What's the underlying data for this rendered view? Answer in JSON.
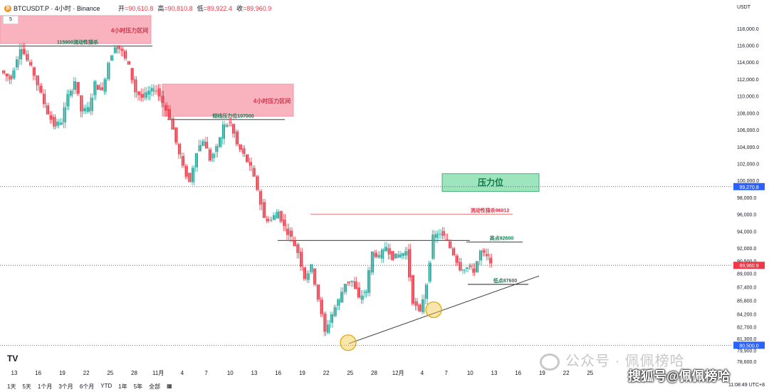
{
  "header": {
    "symbol": "BTCUSDT.P · 4小时 · Binance",
    "symbol_icon": "₿",
    "ohlc": [
      {
        "label": "开",
        "value": "=90,610.8"
      },
      {
        "label": "高",
        "value": "=90,810.8"
      },
      {
        "label": "低",
        "value": "=89,922.4"
      },
      {
        "label": "收",
        "value": "=89,960.9"
      }
    ],
    "currency": "USDT",
    "interval_badge": "5"
  },
  "colors": {
    "up": "#26a69a",
    "down": "#f23645",
    "resist_zone": "#f7a6b4",
    "green_zone": "#8ee0b4",
    "support_circle": "#f5c542",
    "price_tag": "#f23645",
    "level_tag": "#2962ff"
  },
  "chart_data": {
    "type": "candlestick",
    "x_ticks": [
      "13",
      "16",
      "19",
      "22",
      "25",
      "28",
      "11月",
      "4",
      "7",
      "10",
      "13",
      "16",
      "19",
      "22",
      "25",
      "28",
      "12月",
      "4",
      "7",
      "10",
      "13",
      "16",
      "19",
      "22",
      "25"
    ],
    "y_ticks": [
      "118,000.0",
      "116,000.0",
      "114,000.0",
      "112,000.0",
      "110,000.0",
      "108,000.0",
      "106,000.0",
      "104,000.0",
      "102,000.0",
      "100,000.0",
      "98,000.0",
      "96,000.0",
      "94,000.0",
      "92,000.0",
      "90,500.0",
      "89,000.0",
      "87,400.0",
      "85,800.0",
      "84,200.0",
      "82,700.0",
      "81,300.0",
      "79,900.0",
      "78,600.0"
    ],
    "ylim": [
      78000,
      119500
    ],
    "price_path": [
      [
        0,
        113000
      ],
      [
        3,
        112000
      ],
      [
        6,
        115800
      ],
      [
        8,
        114200
      ],
      [
        10,
        112500
      ],
      [
        12,
        110200
      ],
      [
        14,
        108000
      ],
      [
        16,
        106500
      ],
      [
        18,
        107000
      ],
      [
        20,
        110000
      ],
      [
        22,
        111800
      ],
      [
        24,
        108200
      ],
      [
        26,
        108500
      ],
      [
        28,
        111500
      ],
      [
        30,
        110500
      ],
      [
        32,
        114000
      ],
      [
        34,
        116000
      ],
      [
        36,
        115200
      ],
      [
        38,
        113500
      ],
      [
        40,
        110500
      ],
      [
        42,
        109800
      ],
      [
        44,
        110500
      ],
      [
        46,
        110800
      ],
      [
        48,
        109200
      ],
      [
        50,
        107500
      ],
      [
        52,
        104500
      ],
      [
        54,
        101500
      ],
      [
        56,
        99800
      ],
      [
        58,
        103500
      ],
      [
        60,
        104800
      ],
      [
        62,
        102500
      ],
      [
        64,
        103800
      ],
      [
        66,
        106500
      ],
      [
        68,
        106800
      ],
      [
        70,
        104200
      ],
      [
        72,
        103000
      ],
      [
        74,
        101500
      ],
      [
        76,
        99000
      ],
      [
        78,
        95500
      ],
      [
        80,
        95300
      ],
      [
        82,
        96300
      ],
      [
        84,
        94500
      ],
      [
        86,
        93200
      ],
      [
        88,
        91500
      ],
      [
        90,
        88500
      ],
      [
        92,
        89800
      ],
      [
        94,
        86000
      ],
      [
        96,
        82000
      ],
      [
        98,
        84200
      ],
      [
        100,
        85800
      ],
      [
        102,
        87900
      ],
      [
        104,
        88100
      ],
      [
        106,
        86000
      ],
      [
        108,
        86900
      ],
      [
        110,
        91500
      ],
      [
        112,
        90900
      ],
      [
        114,
        92200
      ],
      [
        116,
        90900
      ],
      [
        118,
        91200
      ],
      [
        120,
        91600
      ],
      [
        122,
        85700
      ],
      [
        124,
        84300
      ],
      [
        126,
        87800
      ],
      [
        128,
        93300
      ],
      [
        130,
        93800
      ],
      [
        132,
        92800
      ],
      [
        134,
        91300
      ],
      [
        136,
        89600
      ],
      [
        138,
        89700
      ],
      [
        140,
        89300
      ],
      [
        142,
        91600
      ],
      [
        144,
        90900
      ],
      [
        145,
        89961
      ]
    ],
    "zones": [
      {
        "label": "4小时压力区间",
        "from": 116200,
        "to": 119500,
        "x0": 0,
        "x1": 212
      },
      {
        "label": "4小时压力区间",
        "from": 107600,
        "to": 111400,
        "x0": 228,
        "x1": 412
      },
      {
        "label": "压力位",
        "from": 98700,
        "to": 100800,
        "x0": 621,
        "x1": 757
      }
    ],
    "levels": [
      {
        "label": "115900流动性猎杀",
        "value": 115900,
        "x0": 0,
        "x1": 214
      },
      {
        "label": "短线压力位107000",
        "value": 107200,
        "x0": 235,
        "x1": 400
      },
      {
        "label": "流动性猎杀96012",
        "value": 96012,
        "x0": 436,
        "x1": 720
      },
      {
        "label": "",
        "value": 92900,
        "x0": 390,
        "x1": 660
      },
      {
        "label": "高点92600",
        "value": 92700,
        "x0": 655,
        "x1": 734
      },
      {
        "label": "低点87600",
        "value": 87700,
        "x0": 657,
        "x1": 742
      }
    ],
    "dotted_levels": [
      {
        "value": 99270,
        "tag": "99,270.8"
      },
      {
        "value": 89960,
        "tag": "89,960.9"
      },
      {
        "value": 80500,
        "tag": "80,500.0"
      }
    ],
    "trendline": {
      "from": [
        490,
        80700
      ],
      "to": [
        757,
        88700
      ]
    },
    "support_circles": [
      [
        489,
        80800
      ],
      [
        609,
        84700
      ]
    ]
  },
  "bottom_bar": {
    "ranges": [
      "1天",
      "5天",
      "1个月",
      "3个月",
      "6个月",
      "YTD",
      "1年",
      "5年",
      "全部"
    ],
    "clock": "11:08:49 UTC+8"
  },
  "logo": "TV",
  "watermark": "公众号 · 佩佩榜哈",
  "watermark2": "搜狐号@佩佩榜哈"
}
